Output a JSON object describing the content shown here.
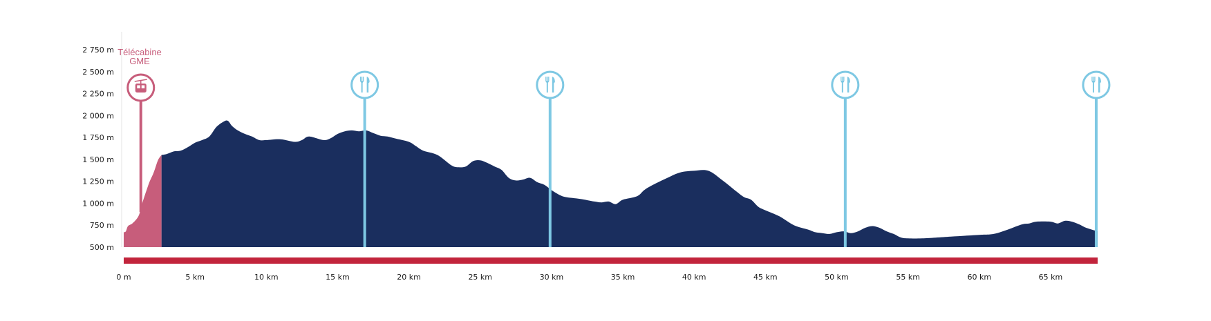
{
  "chart_data": {
    "type": "area",
    "title": "",
    "xlabel": "",
    "ylabel": "",
    "x_unit": "km",
    "y_unit": "m",
    "xlim": [
      0,
      68.3
    ],
    "ylim": [
      500,
      2750
    ],
    "x_ticks": [
      {
        "v": 0,
        "label": "0 m"
      },
      {
        "v": 5,
        "label": "5 km"
      },
      {
        "v": 10,
        "label": "10 km"
      },
      {
        "v": 15,
        "label": "15 km"
      },
      {
        "v": 20,
        "label": "20 km"
      },
      {
        "v": 25,
        "label": "25 km"
      },
      {
        "v": 30,
        "label": "30 km"
      },
      {
        "v": 35,
        "label": "35 km"
      },
      {
        "v": 40,
        "label": "40 km"
      },
      {
        "v": 45,
        "label": "45 km"
      },
      {
        "v": 50,
        "label": "50 km"
      },
      {
        "v": 55,
        "label": "55 km"
      },
      {
        "v": 60,
        "label": "60 km"
      },
      {
        "v": 65,
        "label": "65 km"
      }
    ],
    "y_ticks": [
      {
        "v": 500,
        "label": "500 m"
      },
      {
        "v": 750,
        "label": "750 m"
      },
      {
        "v": 1000,
        "label": "1 000 m"
      },
      {
        "v": 1250,
        "label": "1 250 m"
      },
      {
        "v": 1500,
        "label": "1 500 m"
      },
      {
        "v": 1750,
        "label": "1 750 m"
      },
      {
        "v": 2000,
        "label": "2 000 m"
      },
      {
        "v": 2250,
        "label": "2 250 m"
      },
      {
        "v": 2500,
        "label": "2 500 m"
      },
      {
        "v": 2750,
        "label": "2 750 m"
      }
    ],
    "series": [
      {
        "segment": "gondola",
        "color": "#c75d7b",
        "x": [
          0,
          0.15,
          0.3,
          0.6,
          0.9,
          1.1,
          1.3,
          1.5,
          1.8,
          2.1,
          2.4,
          2.65
        ],
        "y": [
          670,
          680,
          740,
          770,
          820,
          880,
          1000,
          1100,
          1240,
          1350,
          1490,
          1550
        ]
      },
      {
        "segment": "trail",
        "color": "#1a2e5e",
        "x": [
          2.65,
          3.0,
          3.5,
          4.0,
          4.5,
          5.0,
          5.5,
          6.0,
          6.5,
          7.0,
          7.3,
          7.6,
          8.0,
          8.5,
          9.0,
          9.5,
          10.0,
          11.0,
          12.0,
          12.5,
          13.0,
          14.0,
          14.5,
          15.0,
          15.5,
          16.0,
          16.5,
          17.0,
          17.5,
          18.0,
          18.5,
          19.0,
          20.0,
          20.5,
          21.0,
          22.0,
          23.0,
          23.5,
          24.0,
          24.5,
          25.0,
          25.5,
          26.0,
          26.5,
          27.0,
          27.5,
          28.0,
          28.5,
          29.0,
          29.5,
          30.0,
          30.5,
          31.0,
          32.0,
          33.0,
          33.5,
          34.0,
          34.5,
          35.0,
          36.0,
          36.5,
          37.0,
          38.0,
          39.0,
          40.0,
          41.0,
          42.0,
          43.0,
          43.5,
          44.0,
          44.5,
          45.0,
          46.0,
          47.0,
          48.0,
          48.5,
          49.0,
          49.5,
          50.0,
          50.5,
          51.0,
          51.5,
          52.0,
          52.5,
          53.0,
          53.5,
          54.0,
          54.5,
          55.0,
          56.0,
          58.0,
          60.0,
          61.0,
          62.0,
          63.0,
          63.5,
          64.0,
          65.0,
          65.5,
          66.0,
          66.5,
          67.0,
          67.5,
          68.3
        ],
        "y": [
          1550,
          1560,
          1590,
          1600,
          1640,
          1690,
          1720,
          1760,
          1870,
          1930,
          1940,
          1880,
          1830,
          1790,
          1760,
          1720,
          1720,
          1730,
          1700,
          1720,
          1760,
          1720,
          1740,
          1790,
          1820,
          1830,
          1820,
          1830,
          1800,
          1770,
          1760,
          1740,
          1700,
          1650,
          1600,
          1550,
          1430,
          1410,
          1420,
          1480,
          1490,
          1460,
          1420,
          1380,
          1290,
          1260,
          1270,
          1290,
          1240,
          1210,
          1150,
          1100,
          1070,
          1050,
          1020,
          1010,
          1020,
          990,
          1040,
          1080,
          1150,
          1200,
          1280,
          1350,
          1370,
          1370,
          1260,
          1130,
          1070,
          1040,
          960,
          920,
          850,
          750,
          700,
          670,
          660,
          650,
          670,
          680,
          660,
          680,
          720,
          740,
          720,
          680,
          650,
          610,
          600,
          600,
          620,
          640,
          650,
          700,
          760,
          770,
          790,
          790,
          770,
          800,
          790,
          760,
          720,
          680
        ]
      }
    ],
    "route_bar_color": "#c2243c",
    "gondola": {
      "label_line1": "Télécabine",
      "label_line2": "GME",
      "x": 1.2,
      "icon": "gondola-icon",
      "color": "#c75d7b"
    },
    "aid_stations": [
      {
        "x": 16.9,
        "icon": "food-icon"
      },
      {
        "x": 29.9,
        "icon": "food-icon"
      },
      {
        "x": 50.6,
        "icon": "food-icon"
      },
      {
        "x": 68.2,
        "icon": "food-icon"
      }
    ],
    "aid_station_color": "#7ec8e3"
  }
}
